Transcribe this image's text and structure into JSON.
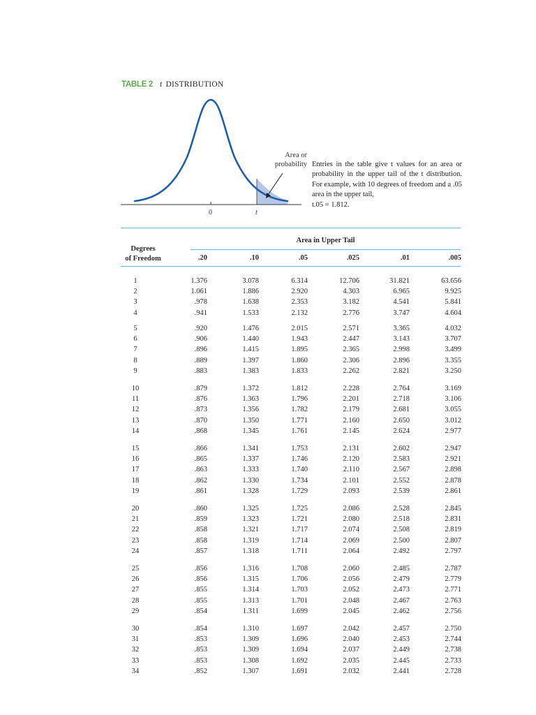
{
  "title": {
    "table_number": "TABLE 2",
    "italic_letter": "t",
    "name": "DISTRIBUTION"
  },
  "figure": {
    "area_label_line1": "Area or",
    "area_label_line2": "probability",
    "axis_zero_label": "0",
    "axis_t_label": "t",
    "curve_color": "#1f5fa8",
    "shade_color": "#b7c6e6"
  },
  "description": {
    "text": "Entries in the table give t values for an area or probability in the upper tail of the t distribution. For example, with 10 degrees of freedom and a .05 area in the upper tail,",
    "equation": "t.05 = 1.812."
  },
  "table": {
    "area_header": "Area in Upper Tail",
    "dof_header_line1": "Degrees",
    "dof_header_line2": "of Freedom",
    "columns": [
      ".20",
      ".10",
      ".05",
      ".025",
      ".01",
      ".005"
    ],
    "rows": [
      [
        "1",
        "1.376",
        "3.078",
        "6.314",
        "12.706",
        "31.821",
        "63.656"
      ],
      [
        "2",
        "1.061",
        "1.886",
        "2.920",
        "4.303",
        "6.965",
        "9.925"
      ],
      [
        "3",
        ".978",
        "1.638",
        "2.353",
        "3.182",
        "4.541",
        "5.841"
      ],
      [
        "4",
        ".941",
        "1.533",
        "2.132",
        "2.776",
        "3.747",
        "4.604"
      ],
      [
        "5",
        ".920",
        "1.476",
        "2.015",
        "2.571",
        "3.365",
        "4.032"
      ],
      [
        "6",
        ".906",
        "1.440",
        "1.943",
        "2.447",
        "3.143",
        "3.707"
      ],
      [
        "7",
        ".896",
        "1.415",
        "1.895",
        "2.365",
        "2.998",
        "3.499"
      ],
      [
        "8",
        ".889",
        "1.397",
        "1.860",
        "2.306",
        "2.896",
        "3.355"
      ],
      [
        "9",
        ".883",
        "1.383",
        "1.833",
        "2.262",
        "2.821",
        "3.250"
      ],
      [
        "10",
        ".879",
        "1.372",
        "1.812",
        "2.228",
        "2.764",
        "3.169"
      ],
      [
        "11",
        ".876",
        "1.363",
        "1.796",
        "2.201",
        "2.718",
        "3.106"
      ],
      [
        "12",
        ".873",
        "1.356",
        "1.782",
        "2.179",
        "2.681",
        "3.055"
      ],
      [
        "13",
        ".870",
        "1.350",
        "1.771",
        "2.160",
        "2.650",
        "3.012"
      ],
      [
        "14",
        ".868",
        "1.345",
        "1.761",
        "2.145",
        "2.624",
        "2.977"
      ],
      [
        "15",
        ".866",
        "1.341",
        "1.753",
        "2.131",
        "2.602",
        "2.947"
      ],
      [
        "16",
        ".865",
        "1.337",
        "1.746",
        "2.120",
        "2.583",
        "2.921"
      ],
      [
        "17",
        ".863",
        "1.333",
        "1.740",
        "2.110",
        "2.567",
        "2.898"
      ],
      [
        "18",
        ".862",
        "1.330",
        "1.734",
        "2.101",
        "2.552",
        "2.878"
      ],
      [
        "19",
        ".861",
        "1.328",
        "1.729",
        "2.093",
        "2.539",
        "2.861"
      ],
      [
        "20",
        ".860",
        "1.325",
        "1.725",
        "2.086",
        "2.528",
        "2.845"
      ],
      [
        "21",
        ".859",
        "1.323",
        "1.721",
        "2.080",
        "2.518",
        "2.831"
      ],
      [
        "22",
        ".858",
        "1.321",
        "1.717",
        "2.074",
        "2.508",
        "2.819"
      ],
      [
        "23",
        ".858",
        "1.319",
        "1.714",
        "2.069",
        "2.500",
        "2.807"
      ],
      [
        "24",
        ".857",
        "1.318",
        "1.711",
        "2.064",
        "2.492",
        "2.797"
      ],
      [
        "25",
        ".856",
        "1.316",
        "1.708",
        "2.060",
        "2.485",
        "2.787"
      ],
      [
        "26",
        ".856",
        "1.315",
        "1.706",
        "2.056",
        "2.479",
        "2.779"
      ],
      [
        "27",
        ".855",
        "1.314",
        "1.703",
        "2.052",
        "2.473",
        "2.771"
      ],
      [
        "28",
        ".855",
        "1.313",
        "1.701",
        "2.048",
        "2.467",
        "2.763"
      ],
      [
        "29",
        ".854",
        "1.311",
        "1.699",
        "2.045",
        "2.462",
        "2.756"
      ],
      [
        "30",
        ".854",
        "1.310",
        "1.697",
        "2.042",
        "2.457",
        "2.750"
      ],
      [
        "31",
        ".853",
        "1.309",
        "1.696",
        "2.040",
        "2.453",
        "2.744"
      ],
      [
        "32",
        ".853",
        "1.309",
        "1.694",
        "2.037",
        "2.449",
        "2.738"
      ],
      [
        "33",
        ".853",
        "1.308",
        "1.692",
        "2.035",
        "2.445",
        "2.733"
      ],
      [
        "34",
        ".852",
        "1.307",
        "1.691",
        "2.032",
        "2.441",
        "2.728"
      ]
    ]
  },
  "colors": {
    "title_green": "#5aab4e",
    "rule_blue": "#5dbbd6",
    "curve_blue": "#1f5fa8"
  }
}
